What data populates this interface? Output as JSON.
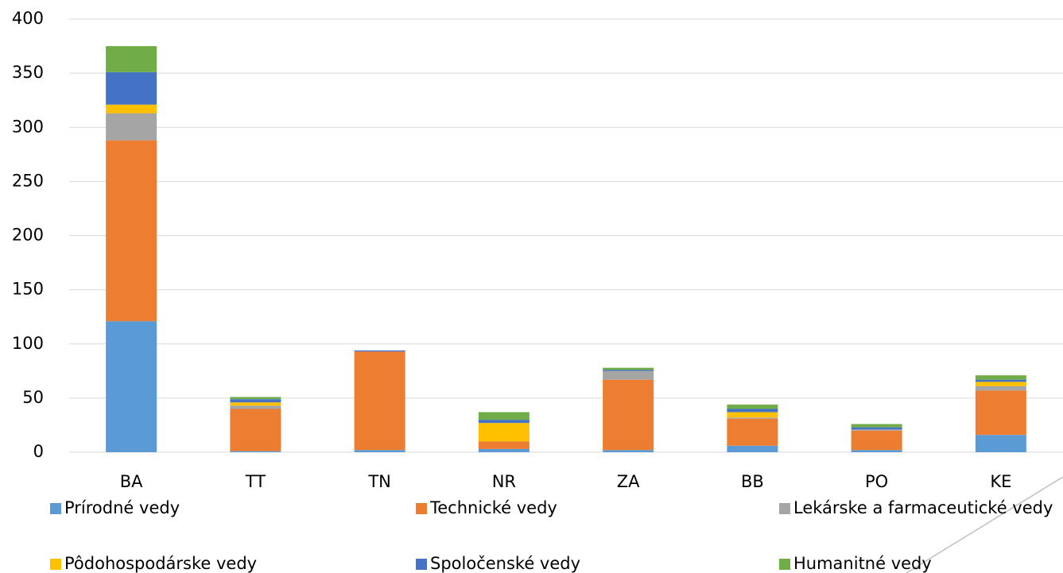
{
  "chart_data": {
    "type": "stacked_bar",
    "categories": [
      "BA",
      "TT",
      "TN",
      "NR",
      "ZA",
      "BB",
      "PO",
      "KE"
    ],
    "series": [
      {
        "name": "Prírodné vedy",
        "color": "#5b9bd5",
        "values": [
          121,
          1,
          2,
          3,
          2,
          6,
          2,
          16
        ]
      },
      {
        "name": "Technické vedy",
        "color": "#ed7d31",
        "values": [
          167,
          39,
          91,
          7,
          65,
          25,
          18,
          41
        ]
      },
      {
        "name": "Lekárske a farmaceutické vedy",
        "color": "#a5a5a5",
        "values": [
          25,
          3,
          0,
          0,
          8,
          1,
          1,
          4
        ]
      },
      {
        "name": "Pôdohospodárske vedy",
        "color": "#ffc000",
        "values": [
          8,
          3,
          0,
          17,
          0,
          5,
          0,
          4
        ]
      },
      {
        "name": "Spoločenské vedy",
        "color": "#4472c4",
        "values": [
          30,
          3,
          1,
          3,
          1,
          3,
          2,
          2
        ]
      },
      {
        "name": "Humanitné vedy",
        "color": "#70ad47",
        "values": [
          24,
          2,
          0,
          7,
          2,
          4,
          3,
          4
        ]
      }
    ],
    "ylim": [
      0,
      400
    ],
    "yticks": [
      0,
      50,
      100,
      150,
      200,
      250,
      300,
      350,
      400
    ],
    "grid": true
  }
}
